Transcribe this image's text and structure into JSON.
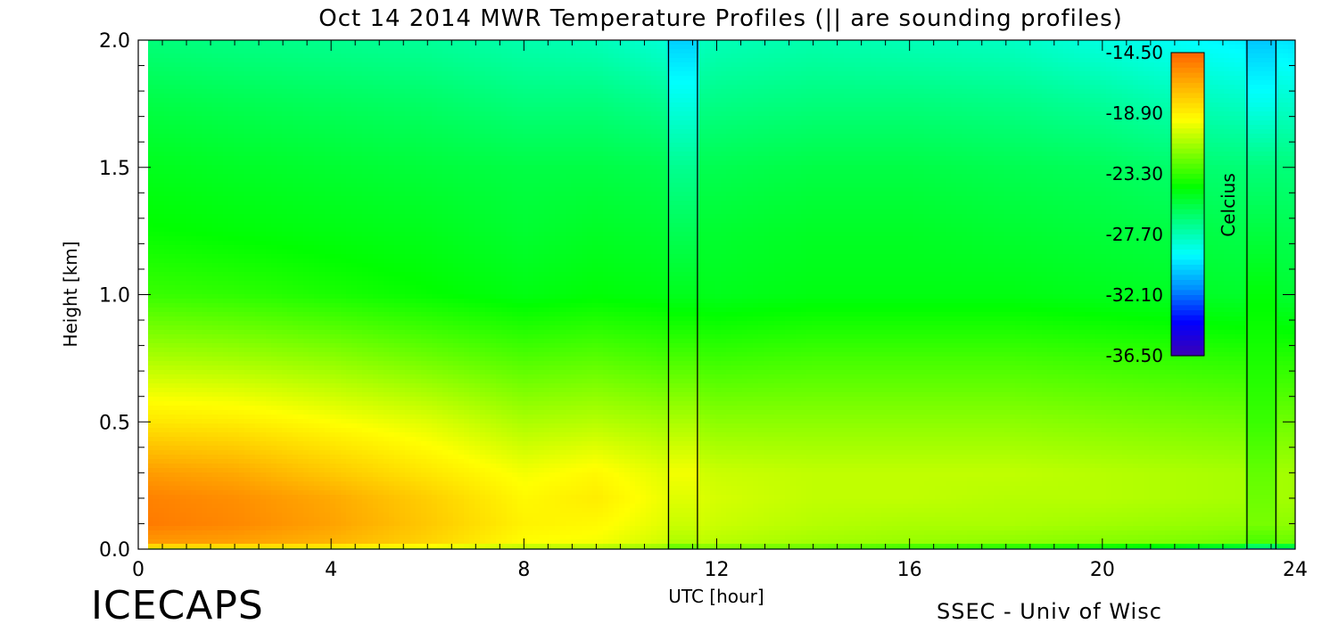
{
  "chart_data": {
    "type": "heatmap",
    "title": "Oct 14 2014 MWR Temperature Profiles (|| are sounding profiles)",
    "xlabel": "UTC [hour]",
    "ylabel": "Height [km]",
    "xlim": [
      0,
      24
    ],
    "ylim": [
      0,
      2.0
    ],
    "x_ticks": [
      "0",
      "4",
      "8",
      "12",
      "16",
      "20",
      "24"
    ],
    "y_ticks": [
      "0.0",
      "0.5",
      "1.0",
      "1.5",
      "2.0"
    ],
    "data_start_hour": 0.2,
    "data_end_hour": 24,
    "sounding_profiles_hour": [
      {
        "start": 11.0,
        "end": 11.6
      },
      {
        "start": 23.0,
        "end": 23.6
      }
    ],
    "colorbar": {
      "label": "Celcius",
      "ticks": [
        "-14.50",
        "-18.90",
        "-23.30",
        "-27.70",
        "-32.10",
        "-36.50"
      ],
      "min": -36.5,
      "max": -14.5,
      "colors": [
        "#3c00b4",
        "#0000ff",
        "#0090ff",
        "#00ffff",
        "#00ff80",
        "#00ff00",
        "#80ff00",
        "#ffff00",
        "#ffb400",
        "#ff6400"
      ]
    },
    "temperature_profile": {
      "heights_km": [
        0.0,
        0.02,
        0.1,
        0.2,
        0.3,
        0.5,
        0.75,
        1.0,
        1.25,
        1.5,
        1.75,
        2.0
      ],
      "profiles": [
        {
          "hour": 0.2,
          "temps": [
            -21,
            -16.2,
            -15.2,
            -15.4,
            -16.2,
            -18.6,
            -21.0,
            -23.2,
            -24.2,
            -24.8,
            -25.6,
            -26.6
          ]
        },
        {
          "hour": 2,
          "temps": [
            -21,
            -16.4,
            -15.6,
            -15.8,
            -16.6,
            -18.8,
            -21.2,
            -23.4,
            -24.4,
            -25.0,
            -25.8,
            -26.8
          ]
        },
        {
          "hour": 4,
          "temps": [
            -21,
            -17.0,
            -16.4,
            -16.6,
            -17.6,
            -19.4,
            -21.6,
            -23.8,
            -24.6,
            -25.2,
            -26.0,
            -27.0
          ]
        },
        {
          "hour": 6,
          "temps": [
            -21.5,
            -18.0,
            -17.6,
            -17.8,
            -18.6,
            -20.0,
            -22.2,
            -24.2,
            -24.8,
            -25.4,
            -26.2,
            -27.2
          ]
        },
        {
          "hour": 8,
          "temps": [
            -22,
            -19.4,
            -19.0,
            -19.2,
            -19.6,
            -21.0,
            -22.8,
            -24.6,
            -25.2,
            -25.6,
            -26.6,
            -27.6
          ]
        },
        {
          "hour": 9.5,
          "temps": [
            -22,
            -19.6,
            -19.2,
            -18.8,
            -19.2,
            -20.8,
            -22.6,
            -24.4,
            -25.0,
            -25.6,
            -26.6,
            -27.8
          ]
        },
        {
          "hour": 11,
          "temps": [
            -22.5,
            -20.4,
            -20.0,
            -19.8,
            -20.0,
            -21.2,
            -23.0,
            -24.6,
            -25.2,
            -25.8,
            -27.0,
            -28.4
          ]
        },
        {
          "hour": 12,
          "temps": [
            -23,
            -20.8,
            -20.4,
            -20.2,
            -20.4,
            -21.6,
            -23.2,
            -24.8,
            -25.2,
            -25.8,
            -26.8,
            -27.8
          ]
        },
        {
          "hour": 14,
          "temps": [
            -23.5,
            -21.2,
            -20.8,
            -20.6,
            -20.6,
            -21.6,
            -23.0,
            -24.6,
            -25.0,
            -25.6,
            -26.6,
            -27.6
          ]
        },
        {
          "hour": 16,
          "temps": [
            -25,
            -21.4,
            -21.0,
            -20.6,
            -20.6,
            -21.6,
            -23.0,
            -24.6,
            -25.0,
            -25.6,
            -26.6,
            -27.8
          ]
        },
        {
          "hour": 18,
          "temps": [
            -26,
            -21.6,
            -21.0,
            -20.8,
            -20.6,
            -21.6,
            -23.0,
            -24.6,
            -25.2,
            -25.8,
            -26.8,
            -28.0
          ]
        },
        {
          "hour": 20,
          "temps": [
            -27,
            -21.8,
            -21.2,
            -20.8,
            -20.8,
            -21.8,
            -23.2,
            -24.8,
            -25.4,
            -26.0,
            -27.2,
            -28.6
          ]
        },
        {
          "hour": 22,
          "temps": [
            -29,
            -22.0,
            -21.4,
            -21.0,
            -21.0,
            -22.0,
            -23.4,
            -25.0,
            -25.6,
            -26.4,
            -27.8,
            -29.2
          ]
        },
        {
          "hour": 24,
          "temps": [
            -30,
            -22.4,
            -21.6,
            -21.2,
            -21.2,
            -22.2,
            -23.6,
            -25.2,
            -25.8,
            -26.6,
            -28.2,
            -29.8
          ]
        }
      ],
      "sounding_temps": {
        "heights_km": [
          0.0,
          0.02,
          0.1,
          0.3,
          0.5,
          1.0,
          1.5,
          1.75,
          2.0
        ],
        "first": [
          -24,
          -21.0,
          -20.4,
          -19.6,
          -21.0,
          -24.8,
          -27.0,
          -28.6,
          -30.2
        ],
        "second": [
          -31,
          -23.0,
          -22.0,
          -22.4,
          -23.2,
          -24.4,
          -26.6,
          -28.8,
          -30.4
        ]
      }
    }
  },
  "footer": {
    "brand": "ICECAPS",
    "credit": "SSEC - Univ of Wisc"
  }
}
